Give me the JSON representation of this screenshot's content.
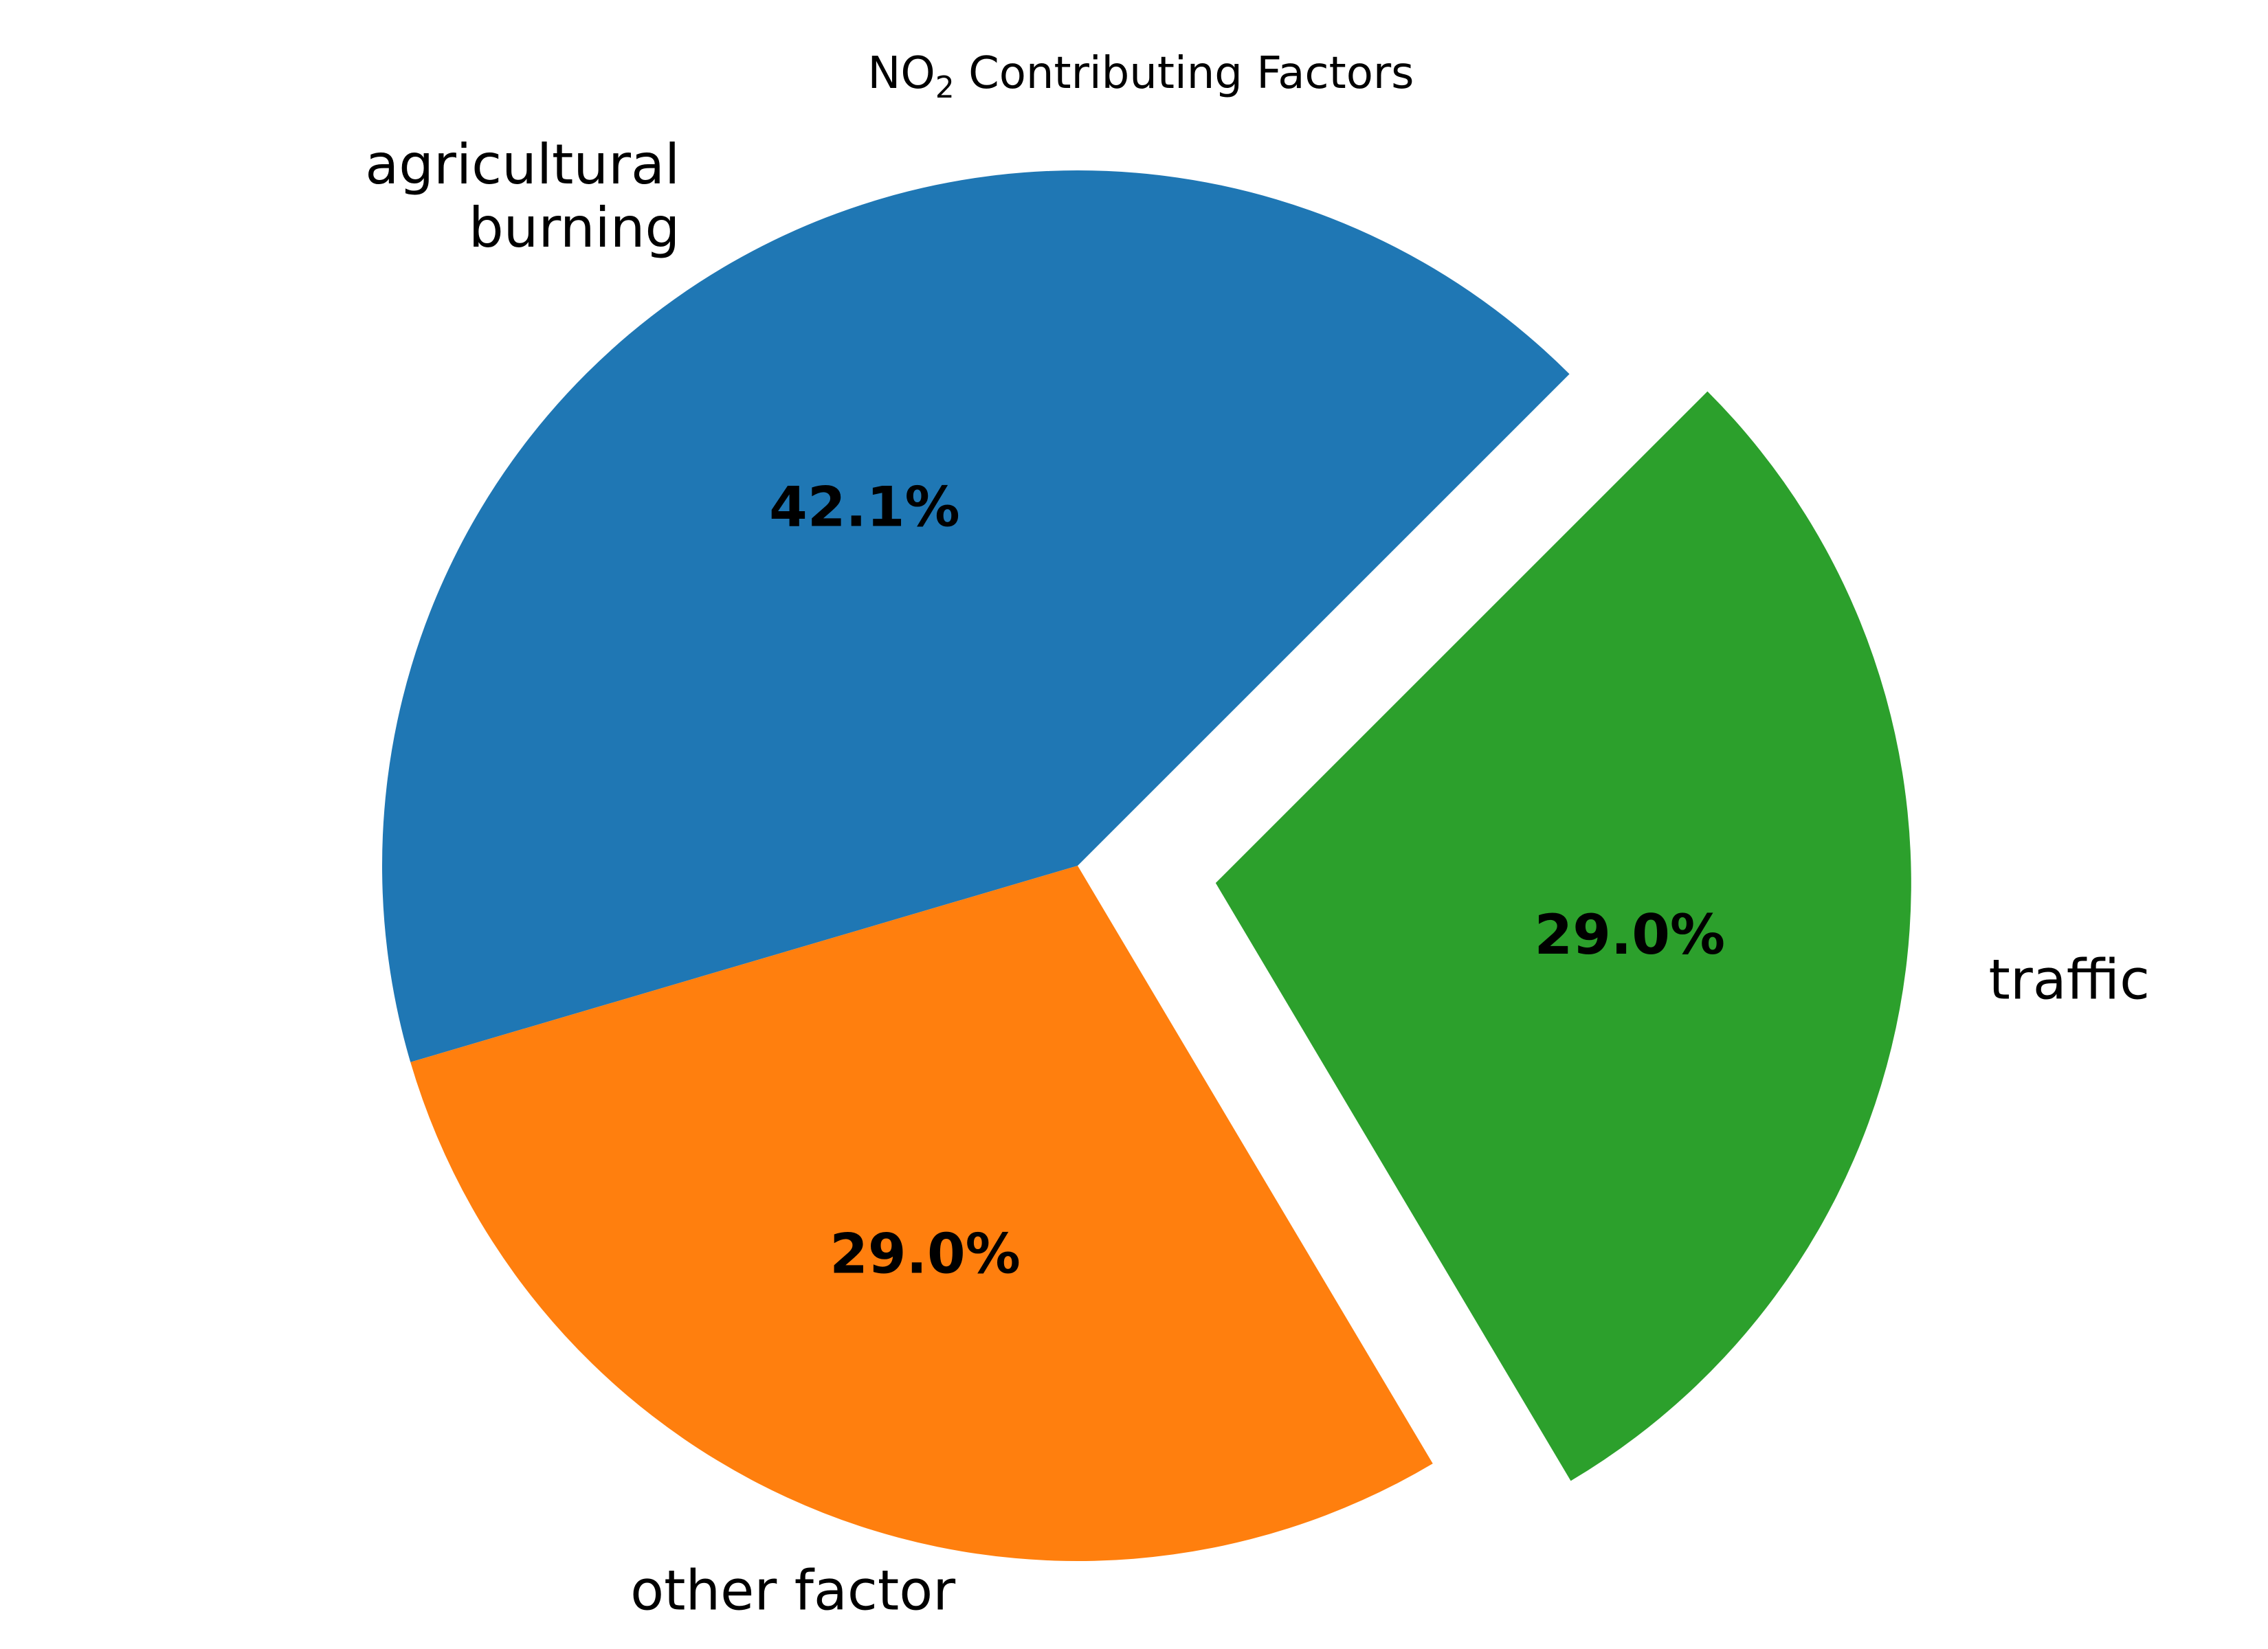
{
  "chart_data": {
    "type": "pie",
    "title": {
      "prefix": "NO",
      "subscript": "2",
      "suffix": " Contributing Factors"
    },
    "slices": [
      {
        "label": [
          "agricultural",
          "burning"
        ],
        "value": 42.1,
        "pct_text": "42.1%",
        "color": "#1f77b4",
        "explode": false,
        "label_anchor": "end"
      },
      {
        "label": [
          "other factor"
        ],
        "value": 29.0,
        "pct_text": "29.0%",
        "color": "#ff7f0e",
        "explode": false,
        "label_anchor": "middle"
      },
      {
        "label": [
          "traffic"
        ],
        "value": 29.0,
        "pct_text": "29.0%",
        "color": "#2ca02c",
        "explode": true,
        "label_anchor": "start"
      }
    ],
    "start_angle_deg": 45,
    "direction": "counterclockwise",
    "legend": "none"
  }
}
